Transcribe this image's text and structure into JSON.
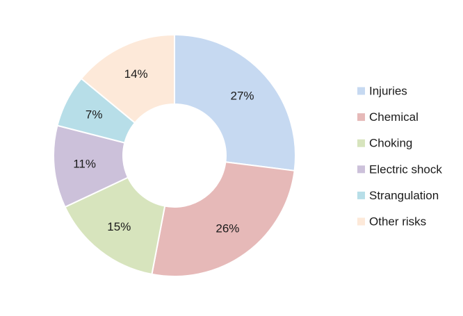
{
  "chart_data": {
    "type": "pie",
    "style": "donut",
    "title": "",
    "legend_position": "right",
    "slices": [
      {
        "label": "Injuries",
        "value": 27,
        "value_label": "27%",
        "color": "#c6d9f1"
      },
      {
        "label": "Chemical",
        "value": 26,
        "value_label": "26%",
        "color": "#e6b9b8"
      },
      {
        "label": "Choking",
        "value": 15,
        "value_label": "15%",
        "color": "#d7e4bd"
      },
      {
        "label": "Electric shock",
        "value": 11,
        "value_label": "11%",
        "color": "#ccc1da"
      },
      {
        "label": "Strangulation",
        "value": 7,
        "value_label": "7%",
        "color": "#b7dee8"
      },
      {
        "label": "Other risks",
        "value": 14,
        "value_label": "14%",
        "color": "#fde9d9"
      }
    ]
  }
}
